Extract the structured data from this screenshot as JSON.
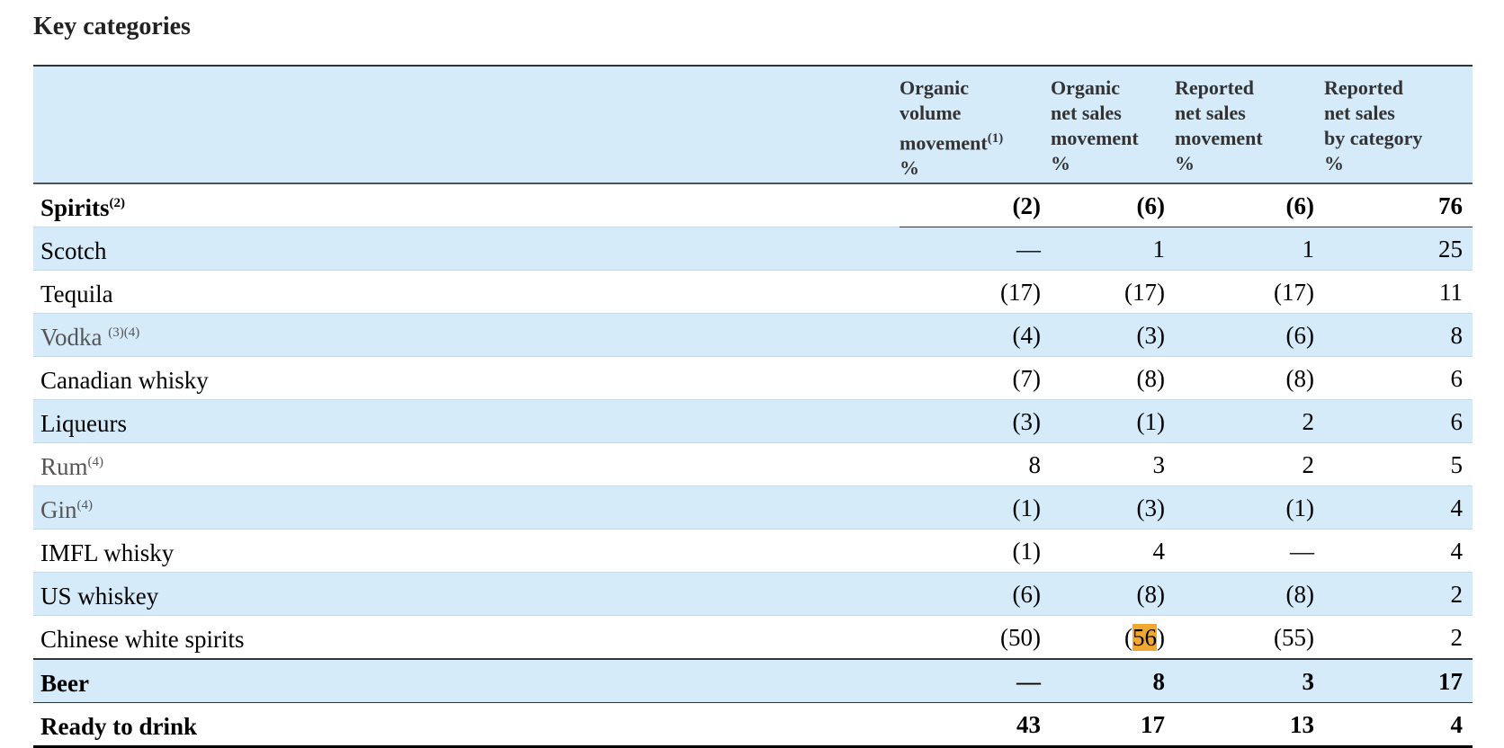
{
  "title": "Key categories",
  "headers": [
    {
      "lines": [
        "Organic",
        "volume",
        "movement"
      ],
      "sup": "(1)",
      "unit": "%"
    },
    {
      "lines": [
        "Organic",
        "net sales",
        "movement"
      ],
      "sup": "",
      "unit": "%"
    },
    {
      "lines": [
        "Reported",
        "net sales",
        "movement"
      ],
      "sup": "",
      "unit": "%"
    },
    {
      "lines": [
        "Reported",
        "net sales",
        "by category"
      ],
      "sup": "",
      "unit": "%"
    }
  ],
  "rows": [
    {
      "label": "Spirits",
      "sup": "(2)",
      "values": [
        "(2)",
        "(6)",
        "(6)",
        "76"
      ]
    },
    {
      "label": "Scotch",
      "sup": "",
      "values": [
        "—",
        "1",
        "1",
        "25"
      ]
    },
    {
      "label": "Tequila",
      "sup": "",
      "values": [
        "(17)",
        "(17)",
        "(17)",
        "11"
      ]
    },
    {
      "label": "Vodka ",
      "sup": "(3)(4)",
      "values": [
        "(4)",
        "(3)",
        "(6)",
        "8"
      ]
    },
    {
      "label": "Canadian whisky",
      "sup": "",
      "values": [
        "(7)",
        "(8)",
        "(8)",
        "6"
      ]
    },
    {
      "label": "Liqueurs",
      "sup": "",
      "values": [
        "(3)",
        "(1)",
        "2",
        "6"
      ]
    },
    {
      "label": "Rum",
      "sup": "(4)",
      "values": [
        "8",
        "3",
        "2",
        "5"
      ]
    },
    {
      "label": "Gin",
      "sup": "(4)",
      "values": [
        "(1)",
        "(3)",
        "(1)",
        "4"
      ]
    },
    {
      "label": "IMFL whisky",
      "sup": "",
      "values": [
        "(1)",
        "4",
        "—",
        "4"
      ]
    },
    {
      "label": "US whiskey",
      "sup": "",
      "values": [
        "(6)",
        "(8)",
        "(8)",
        "2"
      ]
    },
    {
      "label": "Chinese white spirits",
      "sup": "",
      "values": [
        "(50)",
        "(56)",
        "(55)",
        "2"
      ],
      "highlight": {
        "column": 1,
        "text": "56",
        "color": "#f0a830"
      }
    },
    {
      "label": "Beer",
      "sup": "",
      "values": [
        "—",
        "8",
        "3",
        "17"
      ]
    },
    {
      "label": "Ready to drink",
      "sup": "",
      "values": [
        "43",
        "17",
        "13",
        "4"
      ]
    }
  ],
  "colors": {
    "row_blue": "#d6ebfa",
    "highlight": "#f0a830"
  }
}
